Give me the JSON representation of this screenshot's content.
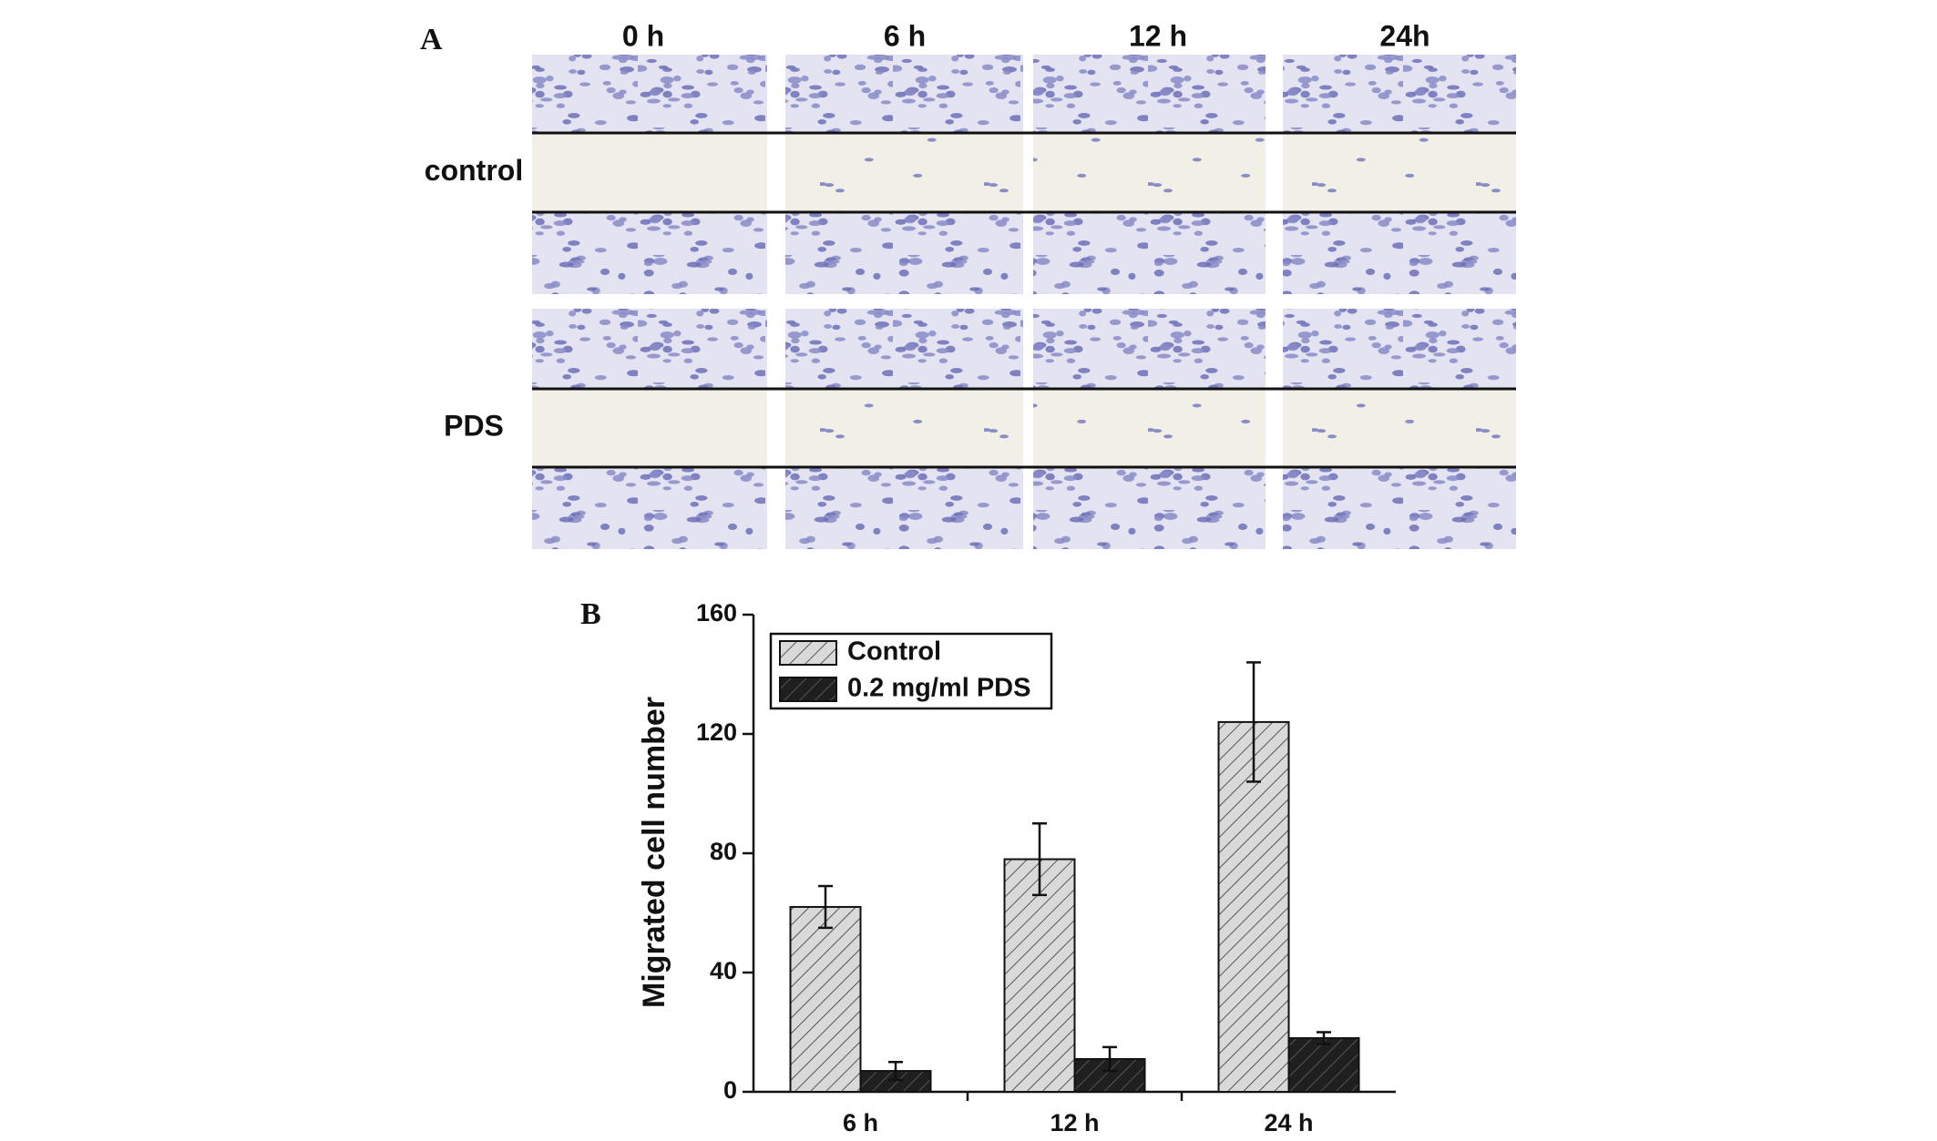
{
  "panel_a": {
    "label": "A",
    "columns": [
      "0 h",
      "6 h",
      "12 h",
      "24h"
    ],
    "rows": [
      "control",
      "PDS"
    ]
  },
  "chart_data": {
    "type": "bar",
    "label": "B",
    "ylabel": "Migrated cell number",
    "categories": [
      "6 h",
      "12 h",
      "24 h"
    ],
    "series": [
      {
        "name": "Control",
        "color": "#d9d9d9",
        "values": [
          62,
          78,
          124
        ],
        "errors": [
          7,
          12,
          20
        ]
      },
      {
        "name": "0.2 mg/ml PDS",
        "color": "#1f1f1f",
        "values": [
          7,
          11,
          18
        ],
        "errors": [
          3,
          4,
          2
        ]
      }
    ],
    "ylim": [
      0,
      160
    ],
    "yticks": [
      0,
      40,
      80,
      120,
      160
    ],
    "legend": "upper left",
    "grid": false
  }
}
